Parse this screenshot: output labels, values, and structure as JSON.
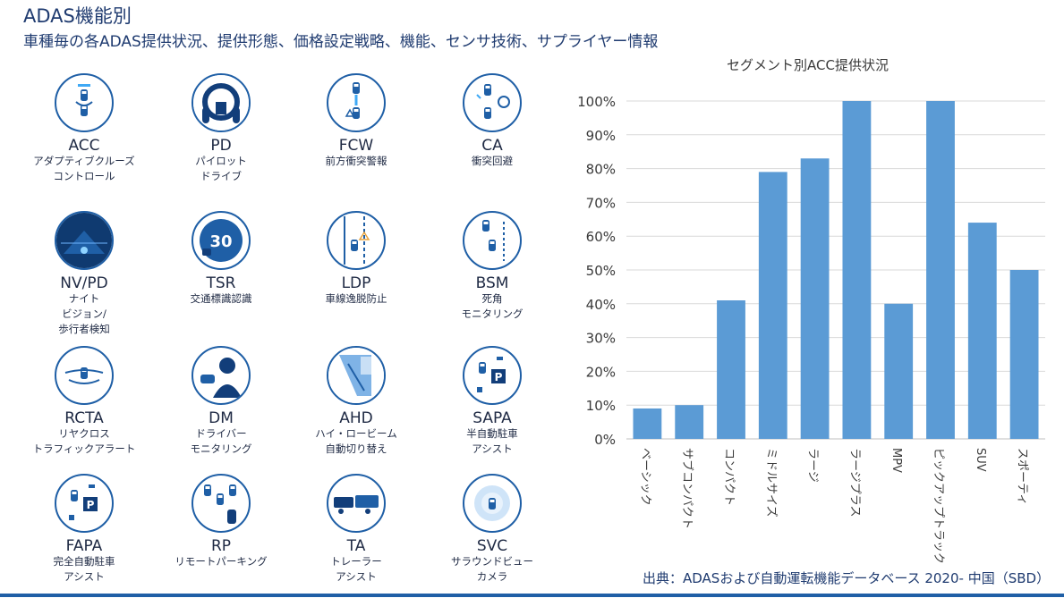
{
  "header": {
    "title": "ADAS機能別",
    "subtitle": "車種毎の各ADAS提供状況、提供形態、価格設定戦略、機能、センサ技術、サプライヤー情報"
  },
  "features": [
    {
      "abbr": "ACC",
      "desc": "アダプティブクルーズ\nコントロール",
      "icon": "acc-icon"
    },
    {
      "abbr": "PD",
      "desc": "パイロット\nドライブ",
      "icon": "steering-wheel-icon"
    },
    {
      "abbr": "FCW",
      "desc": "前方衝突警報",
      "icon": "forward-collision-icon"
    },
    {
      "abbr": "CA",
      "desc": "衝突回避",
      "icon": "collision-avoidance-icon"
    },
    {
      "abbr": "NV/PD",
      "desc": "ナイト\nビジョン/\n歩行者検知",
      "icon": "night-vision-icon"
    },
    {
      "abbr": "TSR",
      "desc": "交通標識認識",
      "icon": "speed-sign-icon",
      "sign_text": "30"
    },
    {
      "abbr": "LDP",
      "desc": "車線逸脱防止",
      "icon": "lane-departure-icon"
    },
    {
      "abbr": "BSM",
      "desc": "死角\nモニタリング",
      "icon": "blind-spot-icon"
    },
    {
      "abbr": "RCTA",
      "desc": "リヤクロス\nトラフィックアラート",
      "icon": "rear-cross-traffic-icon"
    },
    {
      "abbr": "DM",
      "desc": "ドライバー\nモニタリング",
      "icon": "driver-monitor-icon"
    },
    {
      "abbr": "AHD",
      "desc": "ハイ・ロービーム\n自動切り替え",
      "icon": "headlight-icon"
    },
    {
      "abbr": "SAPA",
      "desc": "半自動駐車\nアシスト",
      "icon": "parking-assist-icon",
      "sign_text": "P"
    },
    {
      "abbr": "FAPA",
      "desc": "完全自動駐車\nアシスト",
      "icon": "full-parking-icon",
      "sign_text": "P"
    },
    {
      "abbr": "RP",
      "desc": "リモートパーキング",
      "icon": "remote-parking-icon"
    },
    {
      "abbr": "TA",
      "desc": "トレーラー\nアシスト",
      "icon": "trailer-icon"
    },
    {
      "abbr": "SVC",
      "desc": "サラウンドビュー\nカメラ",
      "icon": "surround-view-icon"
    }
  ],
  "chart_data": {
    "type": "bar",
    "title": "セグメント別ACC提供状況",
    "categories": [
      "ベーシック",
      "サブコンパクト",
      "コンパクト",
      "ミドルサイズ",
      "ラージ",
      "ラージプラス",
      "MPV",
      "ピックアップトラック",
      "SUV",
      "スポーティ"
    ],
    "values": [
      9,
      10,
      41,
      79,
      83,
      100,
      40,
      100,
      64,
      50
    ],
    "ylim": [
      0,
      100
    ],
    "yticks": [
      "0%",
      "10%",
      "20%",
      "30%",
      "40%",
      "50%",
      "60%",
      "70%",
      "80%",
      "90%",
      "100%"
    ],
    "grid": true,
    "bar_color": "#5b9bd5"
  },
  "footer": {
    "source": "出典：ADASおよび自動運転機能データベース 2020- 中国（SBD）"
  }
}
